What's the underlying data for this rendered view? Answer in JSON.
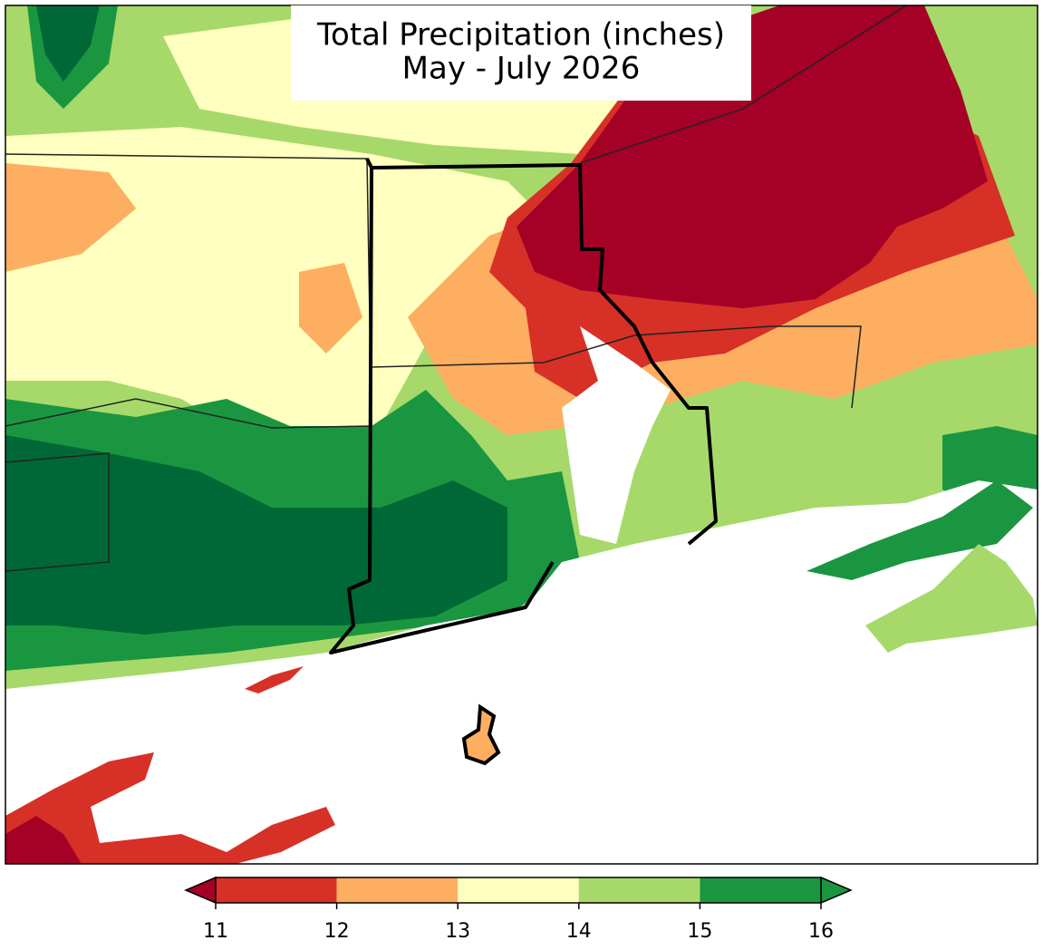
{
  "title": [
    "Total Precipitation (inches)",
    "May - July 2026"
  ],
  "colorbar": {
    "ticks": [
      11,
      12,
      13,
      14,
      15,
      16
    ],
    "colors": [
      "#d73027",
      "#fdae61",
      "#ffffbf",
      "#a6d96a",
      "#1a9641"
    ],
    "under_color": "#a50026",
    "over_color": "#1a9641"
  }
}
